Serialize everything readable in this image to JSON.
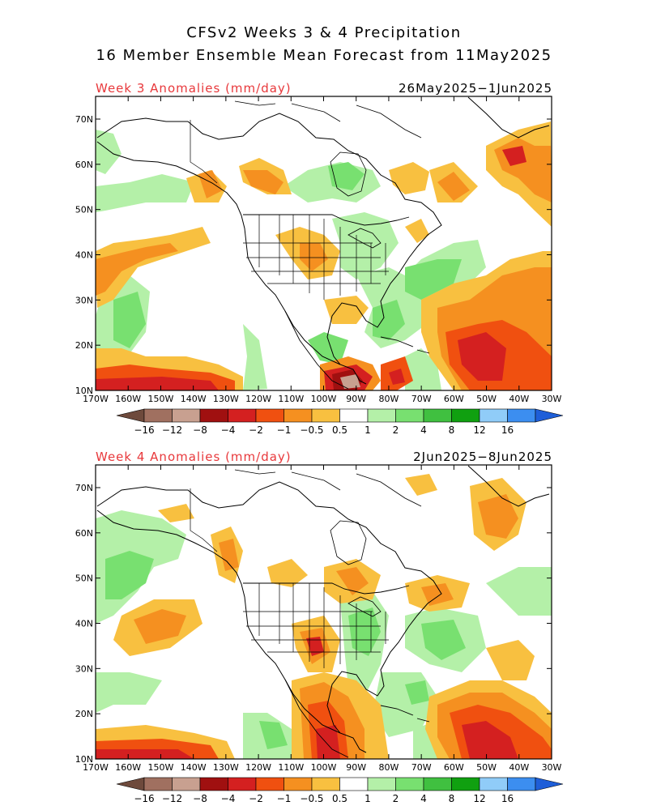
{
  "title_line1": "CFSv2 Weeks 3 & 4 Precipitation",
  "title_line2": "16 Member Ensemble Mean Forecast from 11May2025",
  "panels": [
    {
      "label": "Week 3 Anomalies (mm/day)",
      "dates": "26May2025−1Jun2025"
    },
    {
      "label": "Week 4 Anomalies (mm/day)",
      "dates": "2Jun2025−8Jun2025"
    }
  ],
  "lat_labels": [
    "70N",
    "60N",
    "50N",
    "40N",
    "30N",
    "20N",
    "10N"
  ],
  "lon_labels": [
    "170W",
    "160W",
    "150W",
    "140W",
    "130W",
    "120W",
    "110W",
    "100W",
    "90W",
    "80W",
    "70W",
    "60W",
    "50W",
    "40W",
    "30W"
  ],
  "colorbar_labels": [
    "−16",
    "−12",
    "−8",
    "−4",
    "−2",
    "−1",
    "−0.5",
    "0.5",
    "1",
    "2",
    "4",
    "8",
    "12",
    "16"
  ],
  "colorbar_colors": [
    "#6e4a3c",
    "#a07060",
    "#c8a090",
    "#a01010",
    "#d42020",
    "#f05010",
    "#f59020",
    "#f8c040",
    "#ffffff",
    "#b4f0a8",
    "#78e070",
    "#40c040",
    "#10a010",
    "#90ccf8",
    "#3c8ef0",
    "#1e5ed8"
  ]
}
